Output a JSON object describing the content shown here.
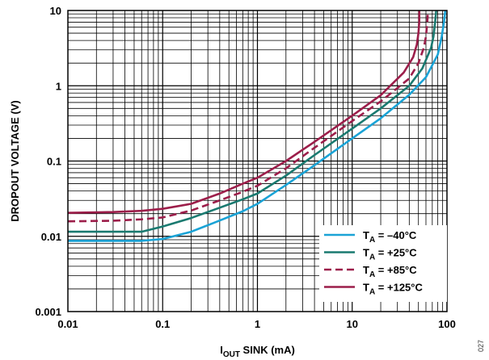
{
  "chart_data": {
    "type": "line",
    "x_scale": "log",
    "y_scale": "log",
    "xlim": [
      0.01,
      100
    ],
    "ylim": [
      0.001,
      10
    ],
    "grid": true,
    "legend_position": "bottom-right",
    "xlabel": {
      "main": "I",
      "sub": "OUT",
      "rest": " SINK (mA)"
    },
    "ylabel": "DROPOUT VOLTAGE (V)",
    "x_ticks": [
      {
        "value": 0.01,
        "label": "0.01"
      },
      {
        "value": 0.1,
        "label": "0.1"
      },
      {
        "value": 1,
        "label": "1"
      },
      {
        "value": 10,
        "label": "10"
      },
      {
        "value": 100,
        "label": "100"
      }
    ],
    "y_ticks": [
      {
        "value": 0.001,
        "label": "0.001"
      },
      {
        "value": 0.01,
        "label": "0.01"
      },
      {
        "value": 0.1,
        "label": "0.1"
      },
      {
        "value": 1,
        "label": "1"
      },
      {
        "value": 10,
        "label": "10"
      }
    ],
    "series": [
      {
        "name": {
          "main": "T",
          "sub": "A",
          "rest": " = –40°C"
        },
        "color": "#1aa3d6",
        "dash": false,
        "points": [
          [
            0.01,
            0.0087
          ],
          [
            0.03,
            0.0087
          ],
          [
            0.06,
            0.0087
          ],
          [
            0.1,
            0.0092
          ],
          [
            0.2,
            0.0115
          ],
          [
            0.4,
            0.0162
          ],
          [
            0.7,
            0.0215
          ],
          [
            1,
            0.027
          ],
          [
            2,
            0.048
          ],
          [
            4,
            0.088
          ],
          [
            10,
            0.2
          ],
          [
            20,
            0.37
          ],
          [
            40,
            0.76
          ],
          [
            60,
            1.3
          ],
          [
            80,
            2.6
          ],
          [
            88,
            4.5
          ],
          [
            93,
            7
          ],
          [
            96,
            10
          ]
        ]
      },
      {
        "name": {
          "main": "T",
          "sub": "A",
          "rest": " = +25°C"
        },
        "color": "#1a7a70",
        "dash": false,
        "points": [
          [
            0.01,
            0.0115
          ],
          [
            0.03,
            0.0115
          ],
          [
            0.06,
            0.0115
          ],
          [
            0.1,
            0.0135
          ],
          [
            0.2,
            0.0175
          ],
          [
            0.4,
            0.024
          ],
          [
            0.7,
            0.031
          ],
          [
            1,
            0.037
          ],
          [
            2,
            0.064
          ],
          [
            4,
            0.12
          ],
          [
            10,
            0.27
          ],
          [
            20,
            0.5
          ],
          [
            40,
            1.0
          ],
          [
            55,
            1.7
          ],
          [
            68,
            3.2
          ],
          [
            72,
            4.5
          ],
          [
            75,
            7
          ],
          [
            77,
            10
          ]
        ]
      },
      {
        "name": {
          "main": "T",
          "sub": "A",
          "rest": " = +85°C"
        },
        "color": "#9c1e4a",
        "dash": true,
        "points": [
          [
            0.01,
            0.0158
          ],
          [
            0.03,
            0.0161
          ],
          [
            0.06,
            0.0168
          ],
          [
            0.1,
            0.0178
          ],
          [
            0.2,
            0.022
          ],
          [
            0.4,
            0.03
          ],
          [
            0.7,
            0.039
          ],
          [
            1,
            0.047
          ],
          [
            2,
            0.08
          ],
          [
            4,
            0.15
          ],
          [
            10,
            0.34
          ],
          [
            20,
            0.62
          ],
          [
            40,
            1.25
          ],
          [
            50,
            2.0
          ],
          [
            57,
            3.2
          ],
          [
            60,
            4.5
          ],
          [
            62,
            7
          ],
          [
            63,
            10
          ]
        ]
      },
      {
        "name": {
          "main": "T",
          "sub": "A",
          "rest": " = +125°C"
        },
        "color": "#9c1e4a",
        "dash": false,
        "points": [
          [
            0.01,
            0.0205
          ],
          [
            0.03,
            0.021
          ],
          [
            0.06,
            0.0218
          ],
          [
            0.1,
            0.0232
          ],
          [
            0.2,
            0.027
          ],
          [
            0.4,
            0.037
          ],
          [
            0.7,
            0.05
          ],
          [
            1,
            0.06
          ],
          [
            2,
            0.1
          ],
          [
            4,
            0.18
          ],
          [
            10,
            0.4
          ],
          [
            20,
            0.75
          ],
          [
            35,
            1.5
          ],
          [
            44,
            2.4
          ],
          [
            48,
            3.5
          ],
          [
            50,
            5
          ],
          [
            51,
            7
          ],
          [
            51,
            10
          ]
        ]
      }
    ]
  },
  "figure_id": "027"
}
